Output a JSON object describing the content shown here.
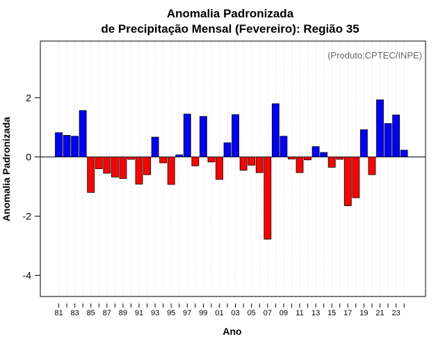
{
  "chart_data": {
    "type": "bar",
    "title": "Anomalia Padronizada",
    "subtitle": "de Precipitação Mensal (Fevereiro): Região 35",
    "xlabel": "Ano",
    "ylabel": "Anomalia Padronizada",
    "source": "(Produto:CPTEC/INPE)",
    "ylim": [
      -4.8,
      3.9
    ],
    "yticks": [
      -4,
      -2,
      0,
      2
    ],
    "grid": "vertical dotted",
    "categories": [
      "81",
      "82",
      "83",
      "84",
      "85",
      "86",
      "87",
      "88",
      "89",
      "90",
      "91",
      "92",
      "93",
      "94",
      "95",
      "96",
      "97",
      "98",
      "99",
      "00",
      "01",
      "02",
      "03",
      "04",
      "05",
      "06",
      "07",
      "08",
      "09",
      "10",
      "11",
      "12",
      "13",
      "14",
      "15",
      "16",
      "17",
      "18",
      "19",
      "20",
      "21",
      "22",
      "23",
      "24"
    ],
    "xtick_labels": [
      "81",
      "83",
      "85",
      "87",
      "89",
      "91",
      "93",
      "95",
      "97",
      "99",
      "01",
      "03",
      "05",
      "07",
      "09",
      "11",
      "13",
      "15",
      "17",
      "19",
      "21",
      "23"
    ],
    "values": [
      0.82,
      0.73,
      0.7,
      1.57,
      -1.2,
      -0.4,
      -0.55,
      -0.68,
      -0.73,
      -0.08,
      -0.92,
      -0.6,
      0.67,
      -0.2,
      -0.93,
      0.07,
      1.45,
      -0.3,
      1.37,
      -0.17,
      -0.76,
      0.48,
      1.43,
      -0.45,
      -0.28,
      -0.53,
      -2.78,
      1.8,
      0.7,
      -0.07,
      -0.53,
      -0.1,
      0.35,
      0.15,
      -0.35,
      -0.08,
      -1.65,
      -1.38,
      0.92,
      -0.6,
      1.93,
      1.13,
      1.42,
      0.23
    ],
    "colors": {
      "positive": "#0000ff",
      "negative": "#ff0000"
    }
  }
}
